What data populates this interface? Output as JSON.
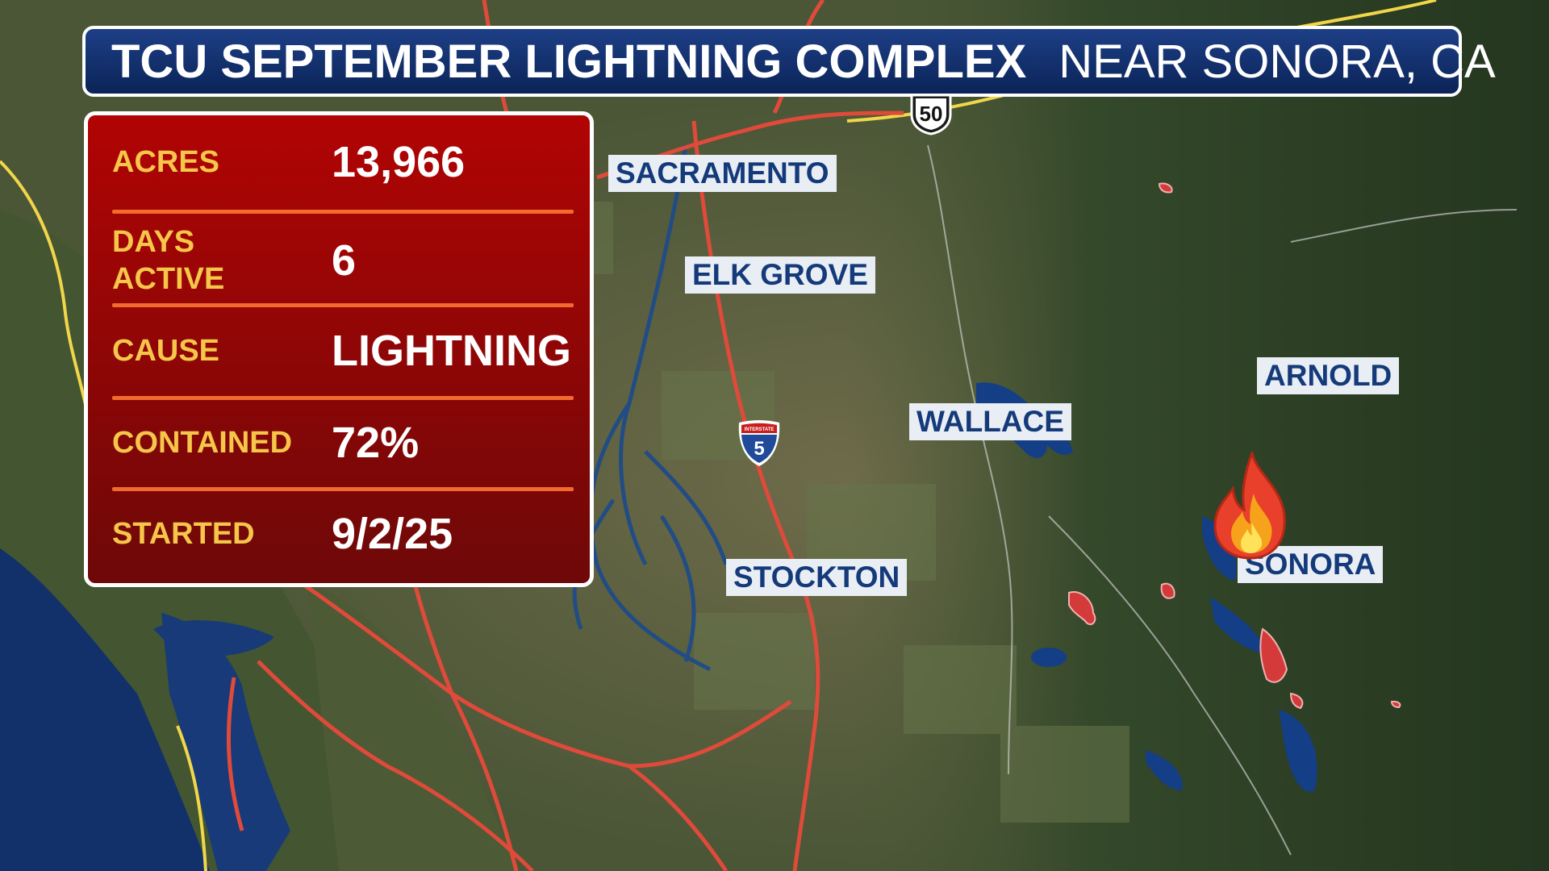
{
  "title": {
    "main": "TCU SEPTEMBER LIGHTNING COMPLEX",
    "location": "NEAR SONORA, CA"
  },
  "stats": [
    {
      "label": "ACRES",
      "value": "13,966"
    },
    {
      "label": "DAYS\nACTIVE",
      "value": "6"
    },
    {
      "label": "CAUSE",
      "value": "LIGHTNING"
    },
    {
      "label": "CONTAINED",
      "value": "72%"
    },
    {
      "label": "STARTED",
      "value": "9/2/25"
    }
  ],
  "cities": {
    "sacramento": "SACRAMENTO",
    "elk_grove": "ELK GROVE",
    "wallace": "WALLACE",
    "arnold": "ARNOLD",
    "stockton": "STOCKTON",
    "sonora": "SONORA"
  },
  "shields": {
    "us_route": "50",
    "interstate": "5",
    "interstate_header": "INTERSTATE"
  },
  "icons": {
    "fire": "fire-icon",
    "us_shield": "us-route-shield-icon",
    "interstate_shield": "interstate-shield-icon"
  },
  "colors": {
    "title_bg": "#0b2458",
    "panel_red": "#a30606",
    "label_yellow": "#f6c64a",
    "divider_orange": "#f26a2e",
    "road_red": "#e04a3a",
    "county_yellow": "#f2d64a",
    "water_blue": "#103a7a",
    "fire_perimeter": "#d43a3a"
  }
}
